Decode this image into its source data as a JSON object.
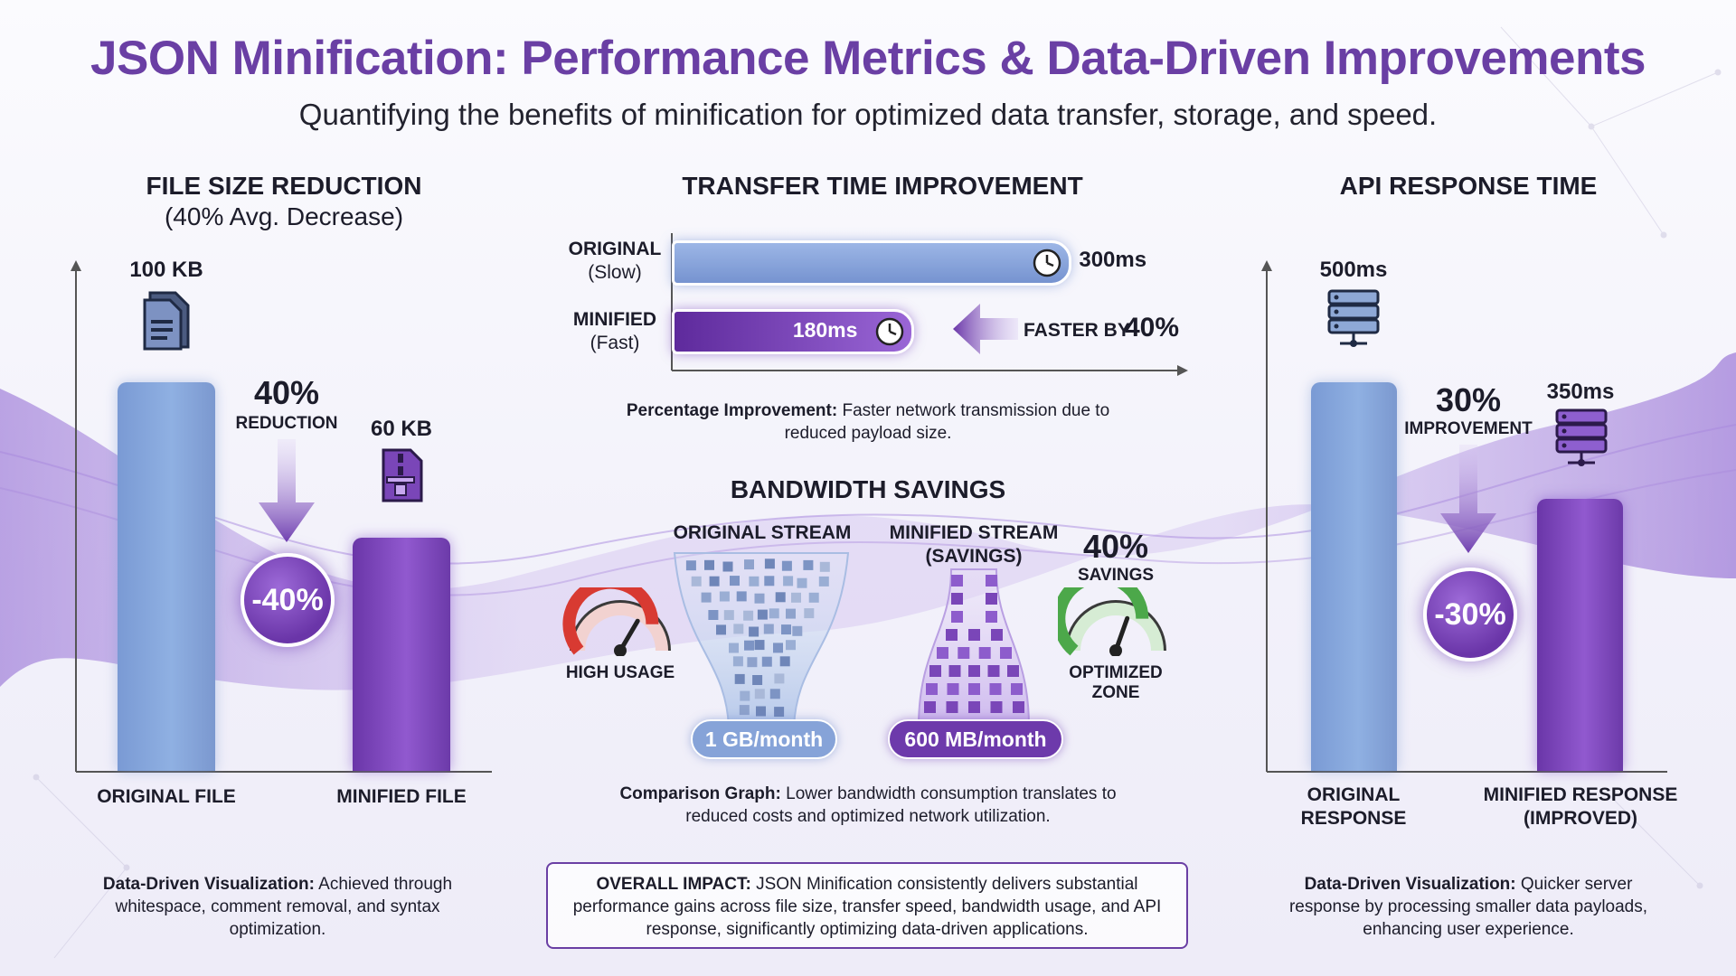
{
  "header": {
    "title": "JSON Minification: Performance Metrics & Data-Driven Improvements",
    "subtitle": "Quantifying the benefits of minification for optimized data transfer, storage, and speed."
  },
  "colors": {
    "title": "#6a3fa4",
    "original_bar": "#88a6dc",
    "minified_bar": "#7a46b8",
    "gauge_red": "#d83a32",
    "gauge_green": "#4ca84a"
  },
  "chart_data": [
    {
      "type": "bar",
      "title": "FILE SIZE REDUCTION",
      "subtitle": "(40% Avg. Decrease)",
      "categories": [
        "ORIGINAL FILE",
        "MINIFIED FILE"
      ],
      "values": [
        100,
        60
      ],
      "unit": "KB",
      "value_labels": [
        "100 KB",
        "60 KB"
      ],
      "ylim": [
        0,
        120
      ],
      "annotation": {
        "pct": "40%",
        "text": "REDUCTION",
        "badge": "-40%"
      },
      "note_bold": "Data-Driven Visualization:",
      "note_text": " Achieved through whitespace, comment removal, and syntax optimization."
    },
    {
      "type": "bar",
      "orientation": "horizontal",
      "title": "TRANSFER TIME IMPROVEMENT",
      "categories": [
        "ORIGINAL",
        "MINIFIED"
      ],
      "category_sublabels": [
        "(Slow)",
        "(Fast)"
      ],
      "values": [
        300,
        180
      ],
      "unit": "ms",
      "value_labels": [
        "300ms",
        "180ms"
      ],
      "xlim": [
        0,
        330
      ],
      "annotation": {
        "text": "FASTER BY",
        "pct": "40%"
      },
      "note_bold": "Percentage Improvement:",
      "note_text": " Faster network transmission due to reduced payload size."
    },
    {
      "type": "bar",
      "title": "API RESPONSE TIME",
      "categories": [
        "ORIGINAL RESPONSE",
        "MINIFIED RESPONSE (IMPROVED)"
      ],
      "category_lines": [
        [
          "ORIGINAL",
          "RESPONSE"
        ],
        [
          "MINIFIED RESPONSE",
          "(IMPROVED)"
        ]
      ],
      "values": [
        500,
        350
      ],
      "unit": "ms",
      "value_labels": [
        "500ms",
        "350ms"
      ],
      "ylim": [
        0,
        600
      ],
      "annotation": {
        "pct": "30%",
        "text": "IMPROVEMENT",
        "badge": "-30%"
      },
      "note_bold": "Data-Driven Visualization:",
      "note_text": " Quicker server response by processing smaller data payloads, enhancing user experience."
    }
  ],
  "bandwidth": {
    "title": "BANDWIDTH SAVINGS",
    "original_stream_label": "ORIGINAL STREAM",
    "minified_stream_label": [
      "MINIFIED STREAM",
      "(SAVINGS)"
    ],
    "original_value": 1,
    "original_unit": "GB/month",
    "original_label": "1 GB/month",
    "minified_value": 600,
    "minified_unit": "MB/month",
    "minified_label": "600 MB/month",
    "high_usage_label": "HIGH USAGE",
    "savings_pct": "40%",
    "savings_label": "SAVINGS",
    "optimized_label": [
      "OPTIMIZED",
      "ZONE"
    ],
    "gauge_high_level": 0.78,
    "gauge_optimized_level": 0.72,
    "note_bold": "Comparison Graph:",
    "note_text": " Lower bandwidth consumption translates to reduced costs and optimized network utilization."
  },
  "impact": {
    "bold": "OVERALL IMPACT:",
    "text": " JSON Minification consistently delivers substantial performance gains across file size, transfer speed, bandwidth usage, and API response, significantly optimizing data-driven applications."
  }
}
